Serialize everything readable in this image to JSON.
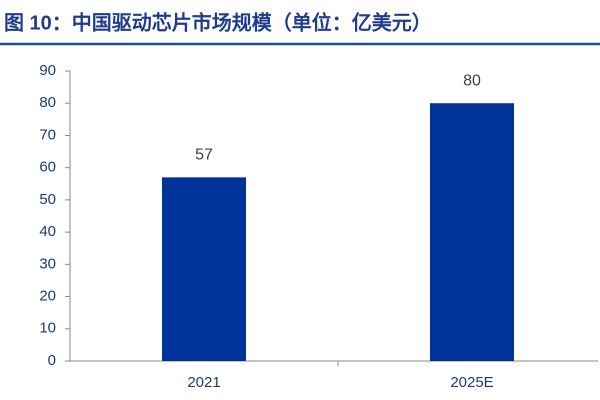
{
  "chart_data": {
    "type": "bar",
    "title": "图 10：中国驱动芯片市场规模（单位：亿美元）",
    "categories": [
      "2021",
      "2025E"
    ],
    "values": [
      57,
      80
    ],
    "color": "#003399",
    "ylim": [
      0,
      90
    ],
    "yticks": [
      0,
      10,
      20,
      30,
      40,
      50,
      60,
      70,
      80,
      90
    ],
    "grid": false,
    "data_labels": true
  }
}
